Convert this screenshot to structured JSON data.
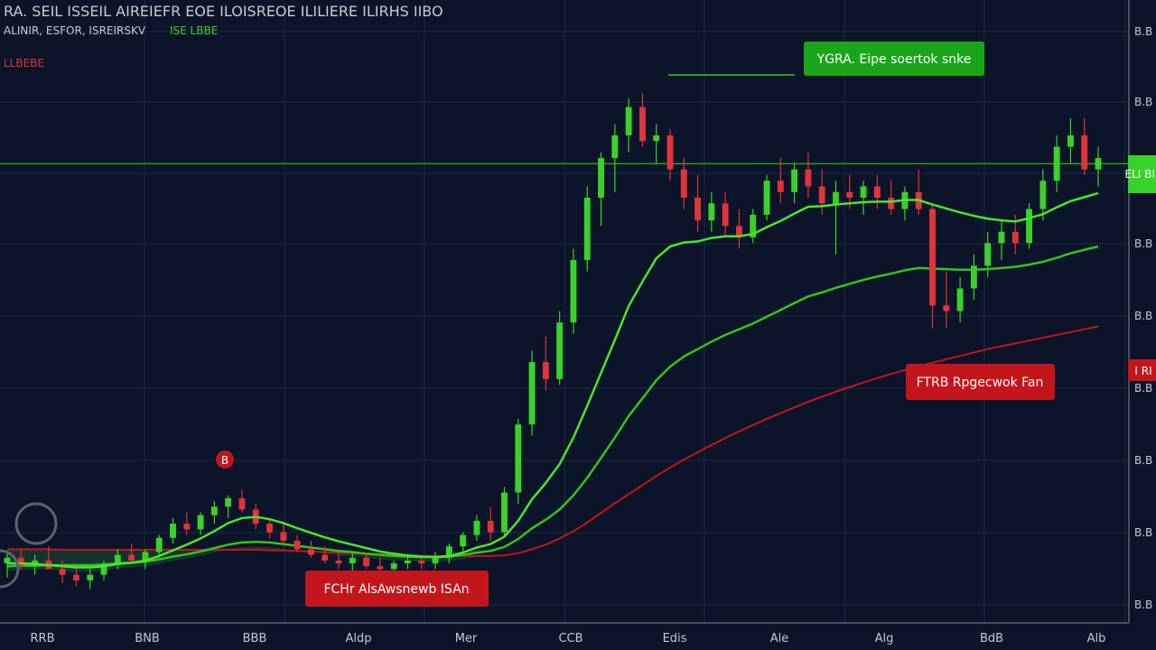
{
  "colors": {
    "background": "#0b1428",
    "grid": "#1d2a44",
    "up": "#3ad12a",
    "down": "#e0343a",
    "ema_fast": "#46e82c",
    "ema_slow": "#36c21e",
    "ma_long": "#c0161c",
    "axis_text": "#c4c9d4"
  },
  "header": {
    "line1": "RA. SEIL ISSEIL AIREIEFR EOE ILOISREOE ILILIERE ILIRHS IIBO",
    "line2_left": "ALINIR, ESFOR, ISREIRSKV",
    "line2_right": "ISE LBBE",
    "line3": "LLBEBE"
  },
  "annotations": {
    "resistance": "YGRA. Eipe soertok snke",
    "support": "FTRB Rpgecwok Fan",
    "bottom": "FCHr AlsAwsnewb ISAn",
    "peak_marker": "B"
  },
  "price_tags": {
    "green": "ELI\nBII",
    "red": "I RI"
  },
  "chart_data": {
    "type": "candlestick",
    "x_tick_labels": [
      "RRB",
      "BNB",
      "BBB",
      "Aldp",
      "Mer",
      "CCB",
      "Edis",
      "Ale",
      "Alg",
      "BdB",
      "Alb"
    ],
    "y_tick_labels": [
      "B.B",
      "B.B",
      "B.B",
      "B.B",
      "B.B",
      "B.B",
      "B.B",
      "B.B",
      "B.B"
    ],
    "ylim": [
      0,
      100
    ],
    "resistance_level": 81,
    "grid": true,
    "candles": [
      {
        "o": 10.5,
        "h": 12.5,
        "l": 8.0,
        "c": 11.5
      },
      {
        "o": 11.5,
        "h": 13.0,
        "l": 9.5,
        "c": 10.0
      },
      {
        "o": 10.0,
        "h": 12.0,
        "l": 8.5,
        "c": 11.0
      },
      {
        "o": 11.0,
        "h": 13.5,
        "l": 9.5,
        "c": 9.5
      },
      {
        "o": 9.5,
        "h": 11.0,
        "l": 7.0,
        "c": 8.5
      },
      {
        "o": 8.5,
        "h": 10.0,
        "l": 6.5,
        "c": 7.5
      },
      {
        "o": 7.5,
        "h": 9.5,
        "l": 6.0,
        "c": 8.5
      },
      {
        "o": 8.5,
        "h": 11.0,
        "l": 7.5,
        "c": 10.5
      },
      {
        "o": 10.5,
        "h": 13.0,
        "l": 9.5,
        "c": 12.0
      },
      {
        "o": 12.0,
        "h": 14.0,
        "l": 10.5,
        "c": 11.0
      },
      {
        "o": 11.0,
        "h": 13.0,
        "l": 9.5,
        "c": 12.5
      },
      {
        "o": 12.5,
        "h": 15.5,
        "l": 11.5,
        "c": 15.0
      },
      {
        "o": 15.0,
        "h": 18.5,
        "l": 14.0,
        "c": 17.5
      },
      {
        "o": 17.5,
        "h": 19.5,
        "l": 15.5,
        "c": 16.5
      },
      {
        "o": 16.5,
        "h": 19.5,
        "l": 15.5,
        "c": 19.0
      },
      {
        "o": 19.0,
        "h": 21.5,
        "l": 17.5,
        "c": 20.5
      },
      {
        "o": 20.5,
        "h": 22.5,
        "l": 18.5,
        "c": 22.0
      },
      {
        "o": 22.0,
        "h": 23.5,
        "l": 19.5,
        "c": 20.0
      },
      {
        "o": 20.0,
        "h": 21.0,
        "l": 16.5,
        "c": 17.5
      },
      {
        "o": 17.5,
        "h": 18.5,
        "l": 15.0,
        "c": 16.0
      },
      {
        "o": 16.0,
        "h": 17.5,
        "l": 13.5,
        "c": 14.5
      },
      {
        "o": 14.5,
        "h": 15.5,
        "l": 12.5,
        "c": 13.0
      },
      {
        "o": 13.0,
        "h": 14.5,
        "l": 11.5,
        "c": 12.0
      },
      {
        "o": 12.0,
        "h": 13.5,
        "l": 10.5,
        "c": 11.0
      },
      {
        "o": 11.0,
        "h": 12.5,
        "l": 9.5,
        "c": 10.5
      },
      {
        "o": 10.5,
        "h": 12.5,
        "l": 9.0,
        "c": 11.5
      },
      {
        "o": 11.5,
        "h": 12.5,
        "l": 9.5,
        "c": 10.0
      },
      {
        "o": 10.0,
        "h": 11.5,
        "l": 8.5,
        "c": 9.5
      },
      {
        "o": 9.5,
        "h": 11.0,
        "l": 8.0,
        "c": 10.5
      },
      {
        "o": 10.5,
        "h": 12.0,
        "l": 9.5,
        "c": 11.0
      },
      {
        "o": 11.0,
        "h": 12.0,
        "l": 9.5,
        "c": 10.5
      },
      {
        "o": 10.5,
        "h": 12.5,
        "l": 9.5,
        "c": 11.5
      },
      {
        "o": 11.5,
        "h": 14.0,
        "l": 10.5,
        "c": 13.5
      },
      {
        "o": 13.5,
        "h": 16.0,
        "l": 12.5,
        "c": 15.5
      },
      {
        "o": 15.5,
        "h": 19.0,
        "l": 14.5,
        "c": 18.0
      },
      {
        "o": 18.0,
        "h": 20.5,
        "l": 14.5,
        "c": 16.0
      },
      {
        "o": 16.0,
        "h": 24.0,
        "l": 15.0,
        "c": 23.0
      },
      {
        "o": 23.0,
        "h": 36.0,
        "l": 21.0,
        "c": 35.0
      },
      {
        "o": 35.0,
        "h": 48.0,
        "l": 33.0,
        "c": 46.0
      },
      {
        "o": 46.0,
        "h": 50.5,
        "l": 41.0,
        "c": 43.0
      },
      {
        "o": 43.0,
        "h": 55.0,
        "l": 42.0,
        "c": 53.0
      },
      {
        "o": 53.0,
        "h": 66.0,
        "l": 51.0,
        "c": 64.0
      },
      {
        "o": 64.0,
        "h": 77.0,
        "l": 62.0,
        "c": 75.0
      },
      {
        "o": 75.0,
        "h": 83.0,
        "l": 70.0,
        "c": 82.0
      },
      {
        "o": 82.0,
        "h": 88.0,
        "l": 76.0,
        "c": 86.0
      },
      {
        "o": 86.0,
        "h": 92.5,
        "l": 83.0,
        "c": 91.0
      },
      {
        "o": 91.0,
        "h": 93.5,
        "l": 84.0,
        "c": 85.0
      },
      {
        "o": 85.0,
        "h": 88.0,
        "l": 81.0,
        "c": 86.0
      },
      {
        "o": 86.0,
        "h": 87.0,
        "l": 78.0,
        "c": 80.0
      },
      {
        "o": 80.0,
        "h": 82.0,
        "l": 73.0,
        "c": 75.0
      },
      {
        "o": 75.0,
        "h": 79.0,
        "l": 69.0,
        "c": 71.0
      },
      {
        "o": 71.0,
        "h": 76.0,
        "l": 69.0,
        "c": 74.0
      },
      {
        "o": 74.0,
        "h": 76.0,
        "l": 68.0,
        "c": 70.0
      },
      {
        "o": 70.0,
        "h": 73.0,
        "l": 66.0,
        "c": 68.0
      },
      {
        "o": 68.0,
        "h": 73.0,
        "l": 67.0,
        "c": 72.0
      },
      {
        "o": 72.0,
        "h": 79.0,
        "l": 71.0,
        "c": 78.0
      },
      {
        "o": 78.0,
        "h": 82.0,
        "l": 74.0,
        "c": 76.0
      },
      {
        "o": 76.0,
        "h": 81.0,
        "l": 74.0,
        "c": 80.0
      },
      {
        "o": 80.0,
        "h": 83.0,
        "l": 75.0,
        "c": 77.0
      },
      {
        "o": 77.0,
        "h": 80.0,
        "l": 72.0,
        "c": 74.0
      },
      {
        "o": 74.0,
        "h": 78.0,
        "l": 65.0,
        "c": 76.0
      },
      {
        "o": 76.0,
        "h": 79.0,
        "l": 73.0,
        "c": 75.0
      },
      {
        "o": 75.0,
        "h": 78.0,
        "l": 72.0,
        "c": 77.0
      },
      {
        "o": 77.0,
        "h": 79.0,
        "l": 73.0,
        "c": 75.0
      },
      {
        "o": 75.0,
        "h": 78.0,
        "l": 72.0,
        "c": 73.0
      },
      {
        "o": 73.0,
        "h": 77.0,
        "l": 71.0,
        "c": 76.0
      },
      {
        "o": 76.0,
        "h": 80.0,
        "l": 72.0,
        "c": 73.0
      },
      {
        "o": 73.0,
        "h": 74.0,
        "l": 52.0,
        "c": 56.0
      },
      {
        "o": 56.0,
        "h": 62.0,
        "l": 52.0,
        "c": 55.0
      },
      {
        "o": 55.0,
        "h": 61.0,
        "l": 53.0,
        "c": 59.0
      },
      {
        "o": 59.0,
        "h": 65.0,
        "l": 57.0,
        "c": 63.0
      },
      {
        "o": 63.0,
        "h": 69.0,
        "l": 61.0,
        "c": 67.0
      },
      {
        "o": 67.0,
        "h": 71.0,
        "l": 64.0,
        "c": 69.0
      },
      {
        "o": 69.0,
        "h": 72.0,
        "l": 65.0,
        "c": 67.0
      },
      {
        "o": 67.0,
        "h": 74.0,
        "l": 66.0,
        "c": 73.0
      },
      {
        "o": 73.0,
        "h": 80.0,
        "l": 71.0,
        "c": 78.0
      },
      {
        "o": 78.0,
        "h": 86.0,
        "l": 76.0,
        "c": 84.0
      },
      {
        "o": 84.0,
        "h": 89.0,
        "l": 81.0,
        "c": 86.0
      },
      {
        "o": 86.0,
        "h": 89.0,
        "l": 79.0,
        "c": 80.0
      },
      {
        "o": 80.0,
        "h": 84.0,
        "l": 77.0,
        "c": 82.0
      }
    ],
    "ema_fast": [
      10.5,
      10.5,
      10.4,
      10.2,
      10.0,
      9.8,
      9.8,
      10.0,
      10.4,
      10.6,
      11.0,
      11.8,
      12.8,
      13.8,
      14.9,
      16.2,
      17.6,
      18.5,
      18.7,
      18.3,
      17.6,
      16.7,
      15.9,
      15.1,
      14.4,
      13.8,
      13.2,
      12.6,
      12.2,
      11.9,
      11.7,
      11.6,
      11.8,
      12.4,
      13.3,
      13.9,
      15.2,
      18.0,
      21.8,
      24.7,
      28.0,
      32.7,
      38.3,
      44.1,
      49.9,
      55.9,
      60.2,
      64.3,
      66.4,
      67.1,
      67.3,
      67.9,
      68.2,
      68.2,
      68.6,
      69.8,
      70.9,
      72.2,
      73.4,
      73.5,
      73.8,
      74.0,
      74.2,
      74.3,
      74.3,
      74.6,
      74.6,
      73.8,
      73.1,
      72.4,
      71.8,
      71.3,
      71.0,
      70.8,
      71.4,
      72.1,
      73.3,
      74.4,
      75.1,
      75.8
    ],
    "ema_slow": [
      10.0,
      10.1,
      10.1,
      10.2,
      10.2,
      10.2,
      10.2,
      10.3,
      10.5,
      10.6,
      10.8,
      11.2,
      11.7,
      12.1,
      12.6,
      13.2,
      13.8,
      14.2,
      14.3,
      14.2,
      13.9,
      13.6,
      13.3,
      13.0,
      12.7,
      12.5,
      12.2,
      12.0,
      11.8,
      11.7,
      11.6,
      11.6,
      11.7,
      12.0,
      12.4,
      12.7,
      13.4,
      14.8,
      16.7,
      18.2,
      20.0,
      22.5,
      25.6,
      29.1,
      32.7,
      36.5,
      39.6,
      42.8,
      45.2,
      47.0,
      48.3,
      49.6,
      50.8,
      51.8,
      52.8,
      54.0,
      55.2,
      56.4,
      57.6,
      58.3,
      59.1,
      59.8,
      60.5,
      61.1,
      61.6,
      62.2,
      62.6,
      62.5,
      62.4,
      62.3,
      62.3,
      62.4,
      62.6,
      62.8,
      63.2,
      63.7,
      64.4,
      65.2,
      65.8,
      66.4
    ],
    "ma_long": [
      13.0,
      13.0,
      13.0,
      13.0,
      12.9,
      12.9,
      12.9,
      12.9,
      12.9,
      12.9,
      12.9,
      12.9,
      12.9,
      12.9,
      12.9,
      12.9,
      12.9,
      12.9,
      12.9,
      12.8,
      12.8,
      12.7,
      12.6,
      12.5,
      12.4,
      12.3,
      12.2,
      12.1,
      12.0,
      11.9,
      11.8,
      11.8,
      11.8,
      11.8,
      11.8,
      11.8,
      11.9,
      12.3,
      13.0,
      13.8,
      14.9,
      16.2,
      17.7,
      19.4,
      21.1,
      22.7,
      24.3,
      25.9,
      27.4,
      28.8,
      30.1,
      31.4,
      32.6,
      33.8,
      34.9,
      36.0,
      37.0,
      38.0,
      39.0,
      39.9,
      40.8,
      41.6,
      42.4,
      43.2,
      43.9,
      44.6,
      45.3,
      45.9,
      46.5,
      47.1,
      47.7,
      48.3,
      48.8,
      49.3,
      49.8,
      50.3,
      50.8,
      51.3,
      51.8,
      52.3
    ]
  }
}
